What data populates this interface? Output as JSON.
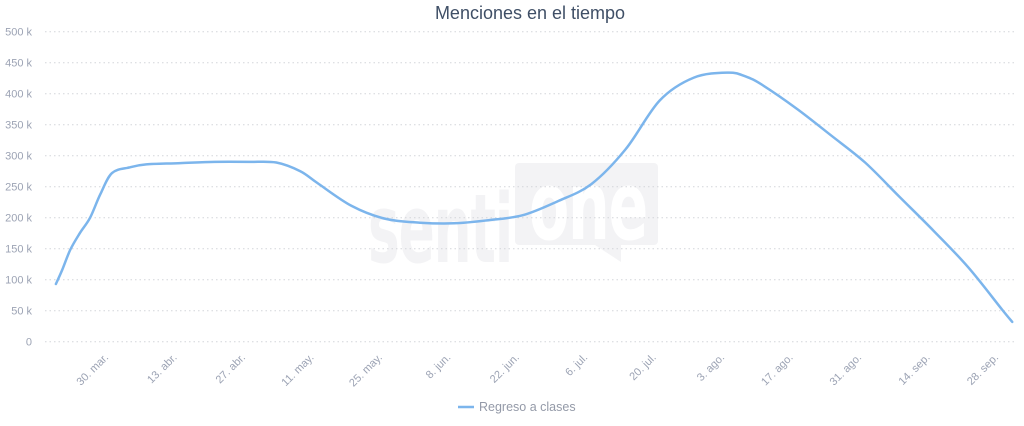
{
  "title": "Menciones en el tiempo",
  "watermark": {
    "prefix": "senti",
    "suffix": "one"
  },
  "legend": {
    "series_label": "Regreso a clases"
  },
  "colors": {
    "series": "#7cb5ec",
    "title": "#3f4f66",
    "axis_label": "#9ca3b4",
    "legend_text": "#949aa8",
    "gridline": "#d3d5da",
    "watermark": "#f3f3f5",
    "watermark_knockout": "#ffffff"
  },
  "chart_data": {
    "type": "line",
    "title": "Menciones en el tiempo",
    "xlabel": "",
    "ylabel": "",
    "ylim": [
      0,
      500000
    ],
    "grid": "horizontal-dotted",
    "legend_position": "bottom-center",
    "y_tick_labels": [
      "0",
      "50 k",
      "100 k",
      "150 k",
      "200 k",
      "250 k",
      "300 k",
      "350 k",
      "400 k",
      "450 k",
      "500 k"
    ],
    "x_tick_labels": [
      "30. mar.",
      "13. abr.",
      "27. abr.",
      "11. may.",
      "25. may.",
      "8. jun.",
      "22. jun.",
      "6. jul.",
      "20. jul.",
      "3. ago.",
      "17. ago.",
      "31. ago.",
      "14. sep.",
      "28. sep."
    ],
    "x_tick_unit_days": 14,
    "series": [
      {
        "name": "Regreso a clases",
        "color": "#7cb5ec",
        "points_note": "t is measured in x-tick intervals (fortnights); t=0 at '30. mar.'. Values estimated from gridlines.",
        "points": [
          {
            "date": "19. mar",
            "t": -0.82,
            "value": 93000
          },
          {
            "date": "20. mar",
            "t": -0.73,
            "value": 115000
          },
          {
            "date": "22. mar",
            "t": -0.61,
            "value": 148000
          },
          {
            "date": "23. mar",
            "t": -0.47,
            "value": 175000
          },
          {
            "date": "25. mar",
            "t": -0.32,
            "value": 200000
          },
          {
            "date": "28. mar",
            "t": -0.17,
            "value": 238000
          },
          {
            "date": "30. mar",
            "t": 0,
            "value": 272000
          },
          {
            "date": "3. abr",
            "t": 0.25,
            "value": 281000
          },
          {
            "date": "6. abr",
            "t": 0.5,
            "value": 286000
          },
          {
            "date": "13. abr",
            "t": 1,
            "value": 288000
          },
          {
            "date": "20. abr",
            "t": 1.5,
            "value": 290000
          },
          {
            "date": "27. abr",
            "t": 2,
            "value": 290000
          },
          {
            "date": "3. may",
            "t": 2.4,
            "value": 289000
          },
          {
            "date": "8. may",
            "t": 2.75,
            "value": 275000
          },
          {
            "date": "11. may",
            "t": 3,
            "value": 256000
          },
          {
            "date": "18. may",
            "t": 3.5,
            "value": 219000
          },
          {
            "date": "25. may",
            "t": 4,
            "value": 198000
          },
          {
            "date": "1. jun",
            "t": 4.5,
            "value": 192000
          },
          {
            "date": "8. jun",
            "t": 5,
            "value": 191000
          },
          {
            "date": "15. jun",
            "t": 5.5,
            "value": 196000
          },
          {
            "date": "22. jun",
            "t": 6,
            "value": 204000
          },
          {
            "date": "29. jun",
            "t": 6.5,
            "value": 226000
          },
          {
            "date": "6. jul",
            "t": 7,
            "value": 254000
          },
          {
            "date": "13. jul",
            "t": 7.5,
            "value": 310000
          },
          {
            "date": "20. jul",
            "t": 8,
            "value": 389000
          },
          {
            "date": "27. jul",
            "t": 8.5,
            "value": 426000
          },
          {
            "date": "3. ago",
            "t": 9,
            "value": 434000
          },
          {
            "date": "7. ago",
            "t": 9.25,
            "value": 428000
          },
          {
            "date": "10. ago",
            "t": 9.5,
            "value": 414000
          },
          {
            "date": "17. ago",
            "t": 10,
            "value": 376000
          },
          {
            "date": "24. ago",
            "t": 10.5,
            "value": 333000
          },
          {
            "date": "31. ago",
            "t": 11,
            "value": 289000
          },
          {
            "date": "7. sep",
            "t": 11.5,
            "value": 234000
          },
          {
            "date": "14. sep",
            "t": 12,
            "value": 179000
          },
          {
            "date": "21. sep",
            "t": 12.5,
            "value": 121000
          },
          {
            "date": "28. sep",
            "t": 13,
            "value": 52000
          },
          {
            "date": "30. sep",
            "t": 13.15,
            "value": 32000
          }
        ]
      }
    ]
  }
}
